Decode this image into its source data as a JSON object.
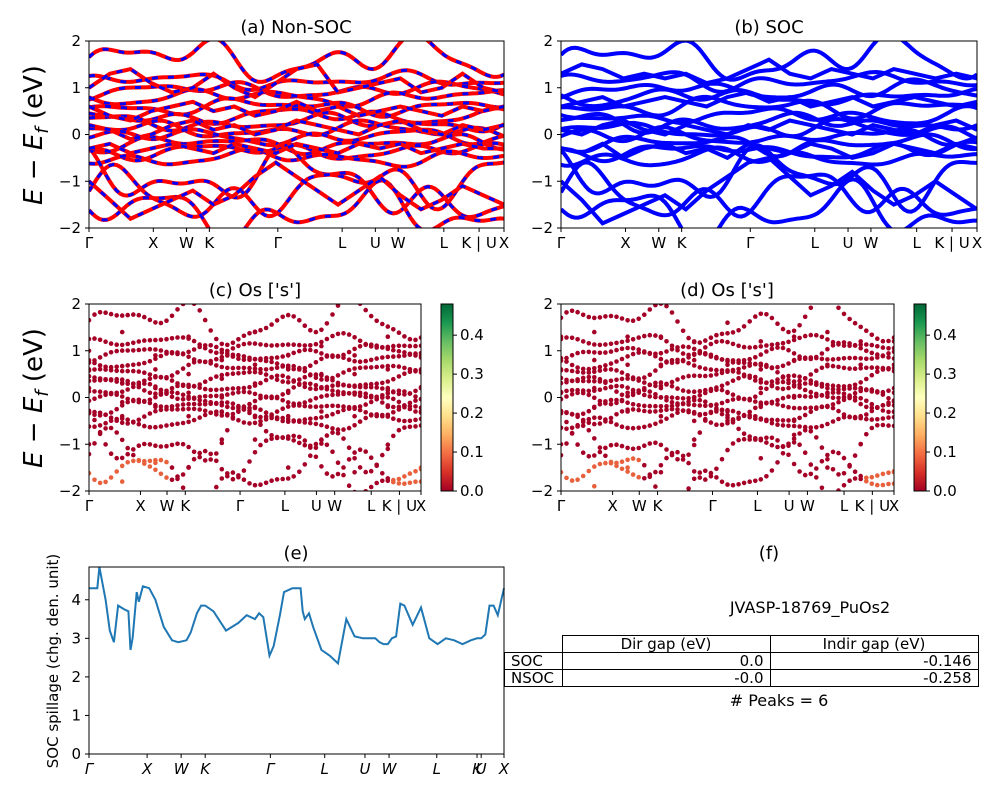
{
  "panels": {
    "a": {
      "title": "(a) Non-SOC"
    },
    "b": {
      "title": "(b) SOC"
    },
    "c": {
      "title": "(c)  Os ['s']"
    },
    "d": {
      "title": "(d) Os ['s']"
    },
    "e": {
      "title": "(e)"
    },
    "f": {
      "title": "(f)"
    }
  },
  "axes": {
    "band_ylabel": "E − E_f (eV)",
    "spill_ylabel": "SOC spillage (chg. den. unit)"
  },
  "kpath_bands": [
    "Γ",
    "X",
    "W",
    "K",
    "Γ",
    "L",
    "U",
    "W",
    "L",
    "K | U",
    "X"
  ],
  "kpath_bands_proj": [
    "Γ",
    "X",
    "W",
    "K",
    "Γ",
    "L",
    "U",
    "W",
    "L",
    "K | U",
    "X"
  ],
  "kpath_spill": [
    "Γ",
    "X",
    "W",
    "K",
    "Γ",
    "L",
    "U",
    "W",
    "L",
    "K",
    "U",
    "X"
  ],
  "band_yticks": [
    "2",
    "1",
    "0",
    "−1",
    "−2"
  ],
  "colorbar_ticks": [
    "0.0",
    "0.1",
    "0.2",
    "0.3",
    "0.4"
  ],
  "spill_yticks": [
    "4",
    "3",
    "2",
    "1",
    "0"
  ],
  "colors": {
    "nonsoc_red": "#ff0000",
    "nonsoc_blue": "#0000ff",
    "soc_blue": "#0000ff",
    "proj_dark": "#a50026",
    "proj_orange": "#e8603c",
    "spill_line": "#1f77b4"
  },
  "colormap": [
    "#a50026",
    "#d73027",
    "#f46d43",
    "#fdae61",
    "#fee08b",
    "#ffffbf",
    "#d9ef8b",
    "#a6d96a",
    "#66bd63",
    "#1a9850",
    "#006837"
  ],
  "info": {
    "material_id": "JVASP-18769_PuOs2",
    "peaks": "# Peaks = 6"
  },
  "gap_table": {
    "col1": "Dir gap (eV)",
    "col2": "Indir gap (eV)",
    "rows": [
      {
        "label": "SOC",
        "dir": "0.0",
        "indir": "-0.146"
      },
      {
        "label": "NSOC",
        "dir": "-0.0",
        "indir": "-0.258"
      }
    ]
  },
  "chart_data": [
    {
      "type": "line",
      "title": "(a) Non-SOC",
      "ylabel": "E − E_f (eV)",
      "ylim": [
        -2,
        2
      ],
      "xtick_labels": [
        "Γ",
        "X",
        "W",
        "K",
        "Γ",
        "L",
        "U",
        "W",
        "L",
        "K | U",
        "X"
      ],
      "series": [
        {
          "name": "",
          "style": "red solid with blue dashes",
          "x": [
            0,
            0.05,
            0.1,
            0.15,
            0.2,
            0.25,
            0.3,
            0.35,
            0.4,
            0.45,
            0.5,
            0.55,
            0.6,
            0.65,
            0.7,
            0.75,
            0.8,
            0.85,
            0.9,
            0.95,
            1
          ],
          "y": [
            1.0,
            1.3,
            1.4,
            1.1,
            0.9,
            1.0,
            1.3,
            1.0,
            0.8,
            1.1,
            1.4,
            1.5,
            0.9,
            1.0,
            1.1,
            1.2,
            0.9,
            1.0,
            1.3,
            1.0,
            0.9
          ]
        },
        {
          "name": "",
          "style": "red solid with blue dashes",
          "x": [
            0,
            0.05,
            0.1,
            0.15,
            0.2,
            0.25,
            0.3,
            0.35,
            0.4,
            0.45,
            0.5,
            0.55,
            0.6,
            0.65,
            0.7,
            0.75,
            0.8,
            0.85,
            0.9,
            0.95,
            1
          ],
          "y": [
            0.6,
            0.4,
            0.3,
            0.5,
            0.6,
            0.7,
            0.5,
            0.6,
            0.4,
            0.5,
            0.7,
            0.5,
            0.6,
            0.4,
            0.5,
            0.6,
            0.5,
            0.4,
            0.6,
            0.5,
            0.6
          ]
        },
        {
          "name": "",
          "style": "red solid with blue dashes",
          "x": [
            0,
            0.05,
            0.1,
            0.15,
            0.2,
            0.25,
            0.3,
            0.35,
            0.4,
            0.45,
            0.5,
            0.55,
            0.6,
            0.65,
            0.7,
            0.75,
            0.8,
            0.85,
            0.9,
            0.95,
            1
          ],
          "y": [
            0.2,
            0.1,
            -0.1,
            0.0,
            0.2,
            0.3,
            0.1,
            0.2,
            0.0,
            0.1,
            0.3,
            0.2,
            0.1,
            0.0,
            0.2,
            0.3,
            0.1,
            0.0,
            0.2,
            0.1,
            0.2
          ]
        },
        {
          "name": "",
          "style": "red solid with blue dashes",
          "x": [
            0,
            0.05,
            0.1,
            0.15,
            0.2,
            0.25,
            0.3,
            0.35,
            0.4,
            0.45,
            0.5,
            0.55,
            0.6,
            0.65,
            0.7,
            0.75,
            0.8,
            0.85,
            0.9,
            0.95,
            1
          ],
          "y": [
            -0.3,
            -0.2,
            -0.4,
            -0.3,
            -0.2,
            -0.3,
            -0.4,
            -0.2,
            -0.3,
            -0.4,
            -0.2,
            -0.3,
            -0.4,
            -0.2,
            -0.3,
            -0.2,
            -0.4,
            -0.3,
            -0.2,
            -0.3,
            -0.3
          ]
        },
        {
          "name": "",
          "style": "red solid with blue dashes",
          "x": [
            0,
            0.05,
            0.1,
            0.15,
            0.2,
            0.25,
            0.3,
            0.35,
            0.4,
            0.45,
            0.5,
            0.55,
            0.6,
            0.65,
            0.7,
            0.75,
            0.8,
            0.85,
            0.9,
            0.95,
            1
          ],
          "y": [
            -1.0,
            -1.4,
            -1.8,
            -1.6,
            -1.4,
            -1.2,
            -1.5,
            -1.3,
            -0.9,
            -0.6,
            -0.9,
            -1.2,
            -1.5,
            -1.2,
            -0.9,
            -1.3,
            -1.6,
            -1.4,
            -1.1,
            -1.3,
            -1.5
          ]
        }
      ]
    },
    {
      "type": "line",
      "title": "(b) SOC",
      "ylim": [
        -2,
        2
      ],
      "xtick_labels": [
        "Γ",
        "X",
        "W",
        "K",
        "Γ",
        "L",
        "U",
        "W",
        "L",
        "K | U",
        "X"
      ],
      "series": [
        {
          "name": "",
          "style": "blue",
          "x": [
            0,
            0.05,
            0.1,
            0.15,
            0.2,
            0.25,
            0.3,
            0.35,
            0.4,
            0.45,
            0.5,
            0.55,
            0.6,
            0.65,
            0.7,
            0.75,
            0.8,
            0.85,
            0.9,
            0.95,
            1
          ],
          "y": [
            1.3,
            1.5,
            1.4,
            1.2,
            1.3,
            1.2,
            1.3,
            1.1,
            1.2,
            1.4,
            1.6,
            1.3,
            1.2,
            1.4,
            1.3,
            1.2,
            1.4,
            1.3,
            1.2,
            1.3,
            1.2
          ]
        },
        {
          "name": "",
          "style": "blue",
          "x": [
            0,
            0.05,
            0.1,
            0.15,
            0.2,
            0.25,
            0.3,
            0.35,
            0.4,
            0.45,
            0.5,
            0.55,
            0.6,
            0.65,
            0.7,
            0.75,
            0.8,
            0.85,
            0.9,
            0.95,
            1
          ],
          "y": [
            0.6,
            0.7,
            0.8,
            0.6,
            0.7,
            0.8,
            0.7,
            0.6,
            0.8,
            0.9,
            0.7,
            0.8,
            0.6,
            0.7,
            0.8,
            0.6,
            0.7,
            0.8,
            0.7,
            0.6,
            0.7
          ]
        },
        {
          "name": "",
          "style": "blue",
          "x": [
            0,
            0.05,
            0.1,
            0.15,
            0.2,
            0.25,
            0.3,
            0.35,
            0.4,
            0.45,
            0.5,
            0.55,
            0.6,
            0.65,
            0.7,
            0.75,
            0.8,
            0.85,
            0.9,
            0.95,
            1
          ],
          "y": [
            0.1,
            0.0,
            0.2,
            0.3,
            0.1,
            0.0,
            0.2,
            0.1,
            0.0,
            0.2,
            0.1,
            0.3,
            0.2,
            0.1,
            0.0,
            0.2,
            0.1,
            0.0,
            0.2,
            0.3,
            0.1
          ]
        },
        {
          "name": "",
          "style": "blue",
          "x": [
            0,
            0.05,
            0.1,
            0.15,
            0.2,
            0.25,
            0.3,
            0.35,
            0.4,
            0.45,
            0.5,
            0.55,
            0.6,
            0.65,
            0.7,
            0.75,
            0.8,
            0.85,
            0.9,
            0.95,
            1
          ],
          "y": [
            -0.3,
            -0.4,
            -0.2,
            -0.5,
            -0.3,
            -0.2,
            -0.4,
            -0.3,
            -0.5,
            -0.2,
            -0.3,
            -0.4,
            -0.2,
            -0.3,
            -0.5,
            -0.4,
            -0.2,
            -0.3,
            -0.4,
            -0.2,
            -0.3
          ]
        },
        {
          "name": "",
          "style": "blue",
          "x": [
            0,
            0.05,
            0.1,
            0.15,
            0.2,
            0.25,
            0.3,
            0.35,
            0.4,
            0.45,
            0.5,
            0.55,
            0.6,
            0.65,
            0.7,
            0.75,
            0.8,
            0.85,
            0.9,
            0.95,
            1
          ],
          "y": [
            -1.0,
            -1.4,
            -1.9,
            -1.7,
            -1.5,
            -1.3,
            -1.6,
            -1.2,
            -0.9,
            -0.6,
            -0.5,
            -0.9,
            -1.3,
            -1.1,
            -0.8,
            -1.2,
            -1.5,
            -1.3,
            -1.0,
            -1.3,
            -1.6
          ]
        }
      ]
    },
    {
      "type": "scatter",
      "title": "(c)  Os ['s']",
      "ylim": [
        -2,
        2
      ],
      "colorbar": [
        0.0,
        0.48
      ],
      "xtick_labels": [
        "Γ",
        "X",
        "W",
        "K",
        "Γ",
        "L",
        "U",
        "W",
        "L",
        "K | U",
        "X"
      ]
    },
    {
      "type": "scatter",
      "title": "(d) Os ['s']",
      "ylim": [
        -2,
        2
      ],
      "colorbar": [
        0.0,
        0.48
      ],
      "xtick_labels": [
        "Γ",
        "X",
        "W",
        "K",
        "Γ",
        "L",
        "U",
        "W",
        "L",
        "K | U",
        "X"
      ]
    },
    {
      "type": "line",
      "title": "(e)",
      "ylabel": "SOC spillage (chg. den. unit)",
      "ylim": [
        0,
        4.85
      ],
      "xtick_labels": [
        "Γ",
        "X",
        "W",
        "K",
        "Γ",
        "L",
        "U",
        "W",
        "L",
        "K",
        "U",
        "X"
      ],
      "series": [
        {
          "name": "",
          "x": [
            0,
            0.02,
            0.025,
            0.04,
            0.05,
            0.06,
            0.07,
            0.085,
            0.095,
            0.1,
            0.105,
            0.115,
            0.12,
            0.13,
            0.145,
            0.16,
            0.18,
            0.2,
            0.215,
            0.235,
            0.245,
            0.26,
            0.27,
            0.28,
            0.3,
            0.33,
            0.36,
            0.38,
            0.4,
            0.41,
            0.42,
            0.435,
            0.445,
            0.46,
            0.47,
            0.49,
            0.5,
            0.51,
            0.515,
            0.52,
            0.53,
            0.54,
            0.56,
            0.58,
            0.6,
            0.62,
            0.64,
            0.66,
            0.675,
            0.69,
            0.7,
            0.71,
            0.72,
            0.73,
            0.74,
            0.75,
            0.76,
            0.78,
            0.8,
            0.82,
            0.84,
            0.86,
            0.88,
            0.9,
            0.92,
            0.935,
            0.945,
            0.955,
            0.965,
            0.975,
            0.985,
            1
          ],
          "y": [
            4.3,
            4.3,
            4.85,
            4.0,
            3.2,
            2.9,
            3.85,
            3.75,
            3.7,
            2.7,
            3.0,
            4.2,
            3.95,
            4.35,
            4.3,
            4.0,
            3.3,
            2.95,
            2.9,
            2.95,
            3.15,
            3.65,
            3.85,
            3.85,
            3.7,
            3.2,
            3.4,
            3.6,
            3.5,
            3.65,
            3.55,
            2.55,
            2.8,
            3.6,
            4.2,
            4.3,
            4.3,
            4.3,
            3.7,
            3.5,
            3.65,
            3.3,
            2.7,
            2.55,
            2.35,
            3.5,
            3.05,
            3.0,
            3.0,
            3.0,
            2.9,
            2.85,
            2.85,
            3.0,
            3.05,
            3.9,
            3.85,
            3.35,
            3.8,
            3.0,
            2.85,
            3.0,
            2.95,
            2.85,
            2.95,
            3.0,
            3.0,
            3.1,
            3.85,
            3.85,
            3.6,
            4.3
          ]
        }
      ]
    }
  ]
}
